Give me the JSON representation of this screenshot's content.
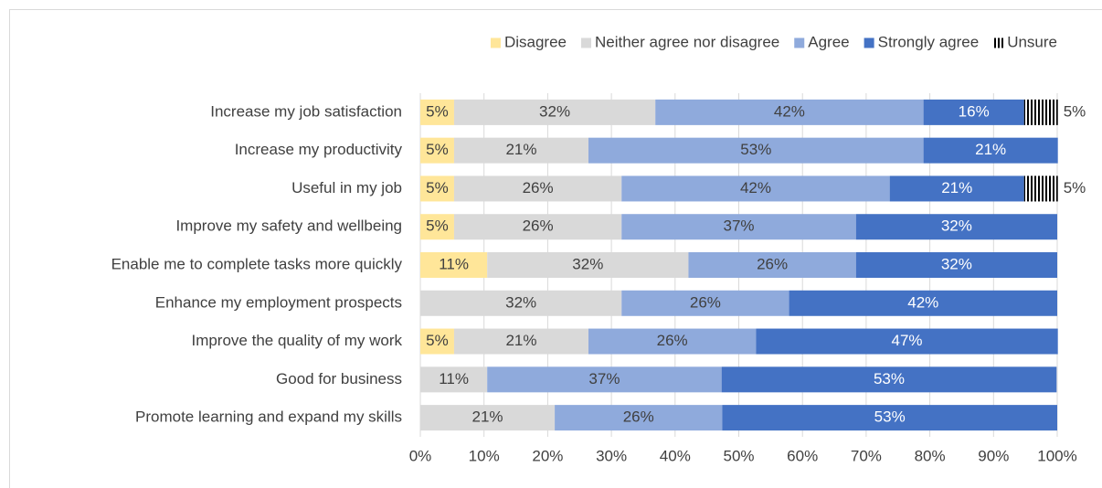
{
  "chart_data": {
    "type": "stacked-bar-horizontal",
    "categories": [
      "Increase my job satisfaction",
      "Increase my productivity",
      "Useful in my job",
      "Improve my safety and wellbeing",
      "Enable me to complete tasks more quickly",
      "Enhance my employment prospects",
      "Improve the quality of my work",
      "Good for business",
      "Promote learning and expand my skills"
    ],
    "series": [
      {
        "name": "Disagree",
        "color": "#ffe699",
        "values": [
          5.3,
          5.3,
          5.3,
          5.3,
          10.5,
          null,
          5.3,
          null,
          null
        ],
        "value_labels": [
          "5%",
          "5%",
          "5%",
          "5%",
          "11%",
          null,
          "5%",
          null,
          null
        ]
      },
      {
        "name": "Neither agree nor disagree",
        "color": "#d9d9d9",
        "values": [
          31.6,
          21.1,
          26.3,
          26.3,
          31.6,
          31.6,
          21.1,
          10.5,
          21.1
        ],
        "value_labels": [
          "32%",
          "21%",
          "26%",
          "26%",
          "32%",
          "32%",
          "21%",
          "11%",
          "21%"
        ]
      },
      {
        "name": "Agree",
        "color": "#8faadc",
        "values": [
          42.1,
          52.6,
          42.1,
          36.8,
          26.3,
          26.3,
          26.3,
          36.8,
          26.3
        ],
        "value_labels": [
          "42%",
          "53%",
          "42%",
          "37%",
          "26%",
          "26%",
          "26%",
          "37%",
          "26%"
        ]
      },
      {
        "name": "Strongly agree",
        "color": "#4472c4",
        "values": [
          15.8,
          21.1,
          21.1,
          31.6,
          31.6,
          42.1,
          47.4,
          52.6,
          52.6
        ],
        "value_labels": [
          "16%",
          "21%",
          "21%",
          "32%",
          "32%",
          "42%",
          "47%",
          "53%",
          "53%"
        ]
      },
      {
        "name": "Unsure",
        "color": "#000000",
        "pattern": "vertical-stripes",
        "values": [
          5.3,
          null,
          5.3,
          null,
          null,
          null,
          null,
          null,
          null
        ],
        "value_labels": [
          "5%",
          null,
          "5%",
          null,
          null,
          null,
          null,
          null,
          null
        ]
      }
    ],
    "xlim": [
      0,
      100
    ],
    "xticks": [
      {
        "value": 0,
        "label": "0%"
      },
      {
        "value": 10,
        "label": "10%"
      },
      {
        "value": 20,
        "label": "20%"
      },
      {
        "value": 30,
        "label": "30%"
      },
      {
        "value": 40,
        "label": "40%"
      },
      {
        "value": 50,
        "label": "50%"
      },
      {
        "value": 60,
        "label": "60%"
      },
      {
        "value": 70,
        "label": "70%"
      },
      {
        "value": 80,
        "label": "80%"
      },
      {
        "value": 90,
        "label": "90%"
      },
      {
        "value": 100,
        "label": "100%"
      }
    ],
    "grid": true,
    "legend": "top"
  }
}
